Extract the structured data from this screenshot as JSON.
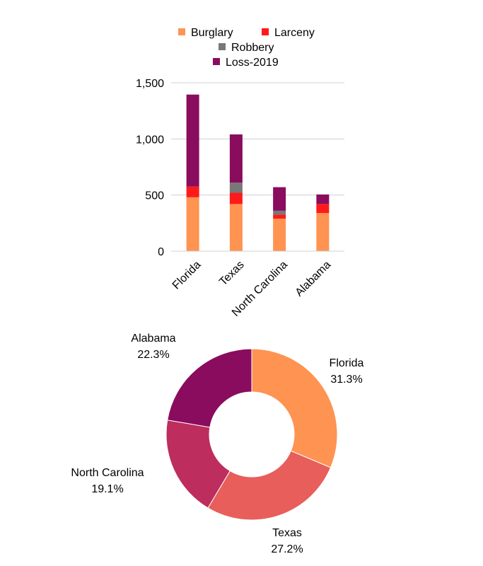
{
  "chart_data": [
    {
      "type": "bar",
      "stacked": true,
      "categories": [
        "Florida",
        "Texas",
        "North Carolina",
        "Alabama"
      ],
      "series": [
        {
          "name": "Burglary",
          "color": "#ff9351",
          "values": [
            480,
            420,
            290,
            340
          ]
        },
        {
          "name": "Larceny",
          "color": "#ff1a1a",
          "values": [
            95,
            100,
            35,
            80
          ]
        },
        {
          "name": "Robbery",
          "color": "#787878",
          "values": [
            0,
            90,
            35,
            0
          ]
        },
        {
          "name": "Loss-2019",
          "color": "#8a0c5e",
          "values": [
            820,
            430,
            210,
            85
          ]
        }
      ],
      "ylim": [
        0,
        1500
      ],
      "yticks": [
        0,
        500,
        1000,
        1500
      ],
      "ytick_labels": [
        "0",
        "500",
        "1,000",
        "1,500"
      ],
      "grid": true,
      "legend_position": "top",
      "title": "",
      "xlabel": "",
      "ylabel": ""
    },
    {
      "type": "pie",
      "donut": true,
      "labels": [
        "Florida",
        "Texas",
        "North Carolina",
        "Alabama"
      ],
      "values": [
        31.3,
        27.2,
        19.1,
        22.3
      ],
      "value_labels": [
        "31.3%",
        "27.2%",
        "19.1%",
        "22.3%"
      ],
      "colors": [
        "#ff9351",
        "#e85e5b",
        "#bd2d5d",
        "#8a0c5e"
      ],
      "title": ""
    }
  ]
}
